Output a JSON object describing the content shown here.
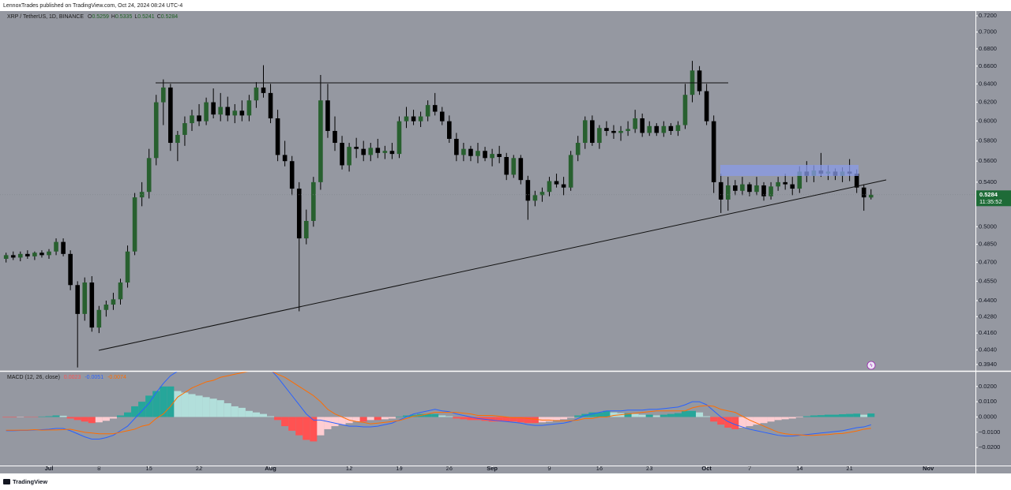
{
  "header": {
    "publisher": "LennoxTrades published on TradingView.com, Oct 24, 2024 08:24 UTC-4"
  },
  "footer": {
    "brand": "TradingView"
  },
  "chart_data": [
    {
      "type": "candlestick",
      "title": "XRP / TetherUS, 1D, BINANCE",
      "ohlc_labels": [
        "O",
        "H",
        "L",
        "C"
      ],
      "countdown": "11:35:52",
      "log_scale": true,
      "grid": false,
      "colors": {
        "up": "#28602f",
        "down": "#000000",
        "wick": "#000000",
        "price_tag": "#1e6b37"
      },
      "xlim": [
        -6.85,
        129.61
      ],
      "xticks": [
        {
          "value": 0,
          "label": "Jul"
        },
        {
          "value": 7,
          "label": "8"
        },
        {
          "value": 14,
          "label": "15"
        },
        {
          "value": 21,
          "label": "22"
        },
        {
          "value": 31,
          "label": "Aug"
        },
        {
          "value": 42,
          "label": "12"
        },
        {
          "value": 49,
          "label": "19"
        },
        {
          "value": 56,
          "label": "26"
        },
        {
          "value": 62,
          "label": "Sep"
        },
        {
          "value": 70,
          "label": "9"
        },
        {
          "value": 77,
          "label": "16"
        },
        {
          "value": 84,
          "label": "23"
        },
        {
          "value": 92,
          "label": "Oct"
        },
        {
          "value": 98,
          "label": "7"
        },
        {
          "value": 105,
          "label": "14"
        },
        {
          "value": 112,
          "label": "21"
        },
        {
          "value": 123,
          "label": "Nov"
        }
      ],
      "ylim": [
        0.3897,
        0.7259
      ],
      "yticks": [
        {
          "value": 0.72,
          "label": "0.7200"
        },
        {
          "value": 0.7,
          "label": "0.7000"
        },
        {
          "value": 0.68,
          "label": "0.6800"
        },
        {
          "value": 0.66,
          "label": "0.6600"
        },
        {
          "value": 0.64,
          "label": "0.6400"
        },
        {
          "value": 0.62,
          "label": "0.6200"
        },
        {
          "value": 0.6,
          "label": "0.6000"
        },
        {
          "value": 0.58,
          "label": "0.5800"
        },
        {
          "value": 0.56,
          "label": "0.5600"
        },
        {
          "value": 0.54,
          "label": "0.5400"
        },
        {
          "value": 0.5,
          "label": "0.5000"
        },
        {
          "value": 0.485,
          "label": "0.4850"
        },
        {
          "value": 0.47,
          "label": "0.4700"
        },
        {
          "value": 0.455,
          "label": "0.4550"
        },
        {
          "value": 0.44,
          "label": "0.4400"
        },
        {
          "value": 0.428,
          "label": "0.4280"
        },
        {
          "value": 0.416,
          "label": "0.4160"
        },
        {
          "value": 0.404,
          "label": "0.4040"
        },
        {
          "value": 0.394,
          "label": "0.3940"
        }
      ],
      "x": [
        -6,
        -5,
        -4,
        -3,
        -2,
        -1,
        0,
        1,
        2,
        3,
        4,
        5,
        6,
        7,
        8,
        9,
        10,
        11,
        12,
        13,
        14,
        15,
        16,
        17,
        18,
        19,
        20,
        21,
        22,
        23,
        24,
        25,
        26,
        27,
        28,
        29,
        30,
        31,
        32,
        33,
        34,
        35,
        36,
        37,
        38,
        39,
        40,
        41,
        42,
        43,
        44,
        45,
        46,
        47,
        48,
        49,
        50,
        51,
        52,
        53,
        54,
        55,
        56,
        57,
        58,
        59,
        60,
        61,
        62,
        63,
        64,
        65,
        66,
        67,
        68,
        69,
        70,
        71,
        72,
        73,
        74,
        75,
        76,
        77,
        78,
        79,
        80,
        81,
        82,
        83,
        84,
        85,
        86,
        87,
        88,
        89,
        90,
        91,
        92,
        93,
        94,
        95,
        96,
        97,
        98,
        99,
        100,
        101,
        102,
        103,
        104,
        105,
        106,
        107,
        108,
        109,
        110,
        111,
        112,
        113,
        114,
        115
      ],
      "open": [
        0.473,
        0.476,
        0.474,
        0.477,
        0.475,
        0.478,
        0.476,
        0.479,
        0.487,
        0.477,
        0.452,
        0.43,
        0.454,
        0.42,
        0.433,
        0.437,
        0.441,
        0.454,
        0.479,
        0.526,
        0.531,
        0.563,
        0.62,
        0.636,
        0.578,
        0.586,
        0.598,
        0.606,
        0.6,
        0.62,
        0.607,
        0.615,
        0.606,
        0.611,
        0.606,
        0.622,
        0.636,
        0.63,
        0.603,
        0.566,
        0.56,
        0.534,
        0.49,
        0.505,
        0.54,
        0.622,
        0.59,
        0.578,
        0.556,
        0.574,
        0.572,
        0.566,
        0.573,
        0.568,
        0.57,
        0.567,
        0.6,
        0.605,
        0.6,
        0.605,
        0.617,
        0.61,
        0.6,
        0.582,
        0.566,
        0.572,
        0.565,
        0.57,
        0.563,
        0.567,
        0.564,
        0.547,
        0.563,
        0.542,
        0.523,
        0.528,
        0.531,
        0.541,
        0.538,
        0.535,
        0.566,
        0.578,
        0.601,
        0.578,
        0.593,
        0.59,
        0.588,
        0.59,
        0.592,
        0.603,
        0.588,
        0.595,
        0.588,
        0.595,
        0.59,
        0.596,
        0.628,
        0.655,
        0.632,
        0.6,
        0.54,
        0.524,
        0.537,
        0.532,
        0.538,
        0.531,
        0.537,
        0.527,
        0.536,
        0.54,
        0.538,
        0.534,
        0.55,
        0.546,
        0.551,
        0.548,
        0.55,
        0.546,
        0.55,
        0.548,
        0.535,
        0.5259
      ],
      "high": [
        0.478,
        0.479,
        0.479,
        0.48,
        0.479,
        0.48,
        0.481,
        0.49,
        0.49,
        0.48,
        0.455,
        0.458,
        0.459,
        0.436,
        0.44,
        0.446,
        0.457,
        0.484,
        0.53,
        0.54,
        0.572,
        0.628,
        0.645,
        0.64,
        0.59,
        0.605,
        0.612,
        0.618,
        0.625,
        0.635,
        0.63,
        0.626,
        0.618,
        0.622,
        0.628,
        0.642,
        0.661,
        0.64,
        0.612,
        0.58,
        0.565,
        0.54,
        0.515,
        0.545,
        0.65,
        0.64,
        0.605,
        0.585,
        0.578,
        0.583,
        0.58,
        0.578,
        0.582,
        0.575,
        0.578,
        0.605,
        0.615,
        0.612,
        0.61,
        0.622,
        0.63,
        0.615,
        0.606,
        0.588,
        0.578,
        0.575,
        0.578,
        0.574,
        0.572,
        0.575,
        0.568,
        0.566,
        0.566,
        0.546,
        0.532,
        0.535,
        0.545,
        0.548,
        0.545,
        0.57,
        0.585,
        0.605,
        0.606,
        0.596,
        0.6,
        0.596,
        0.595,
        0.6,
        0.612,
        0.608,
        0.6,
        0.598,
        0.6,
        0.598,
        0.6,
        0.64,
        0.666,
        0.66,
        0.64,
        0.606,
        0.548,
        0.545,
        0.542,
        0.545,
        0.54,
        0.545,
        0.54,
        0.54,
        0.545,
        0.548,
        0.545,
        0.555,
        0.56,
        0.556,
        0.568,
        0.556,
        0.553,
        0.554,
        0.562,
        0.552,
        0.538,
        0.5335
      ],
      "low": [
        0.47,
        0.472,
        0.471,
        0.473,
        0.472,
        0.474,
        0.473,
        0.476,
        0.475,
        0.448,
        0.392,
        0.425,
        0.417,
        0.416,
        0.428,
        0.433,
        0.437,
        0.45,
        0.476,
        0.518,
        0.525,
        0.556,
        0.596,
        0.57,
        0.56,
        0.575,
        0.59,
        0.595,
        0.596,
        0.603,
        0.6,
        0.6,
        0.598,
        0.6,
        0.6,
        0.614,
        0.625,
        0.598,
        0.56,
        0.555,
        0.528,
        0.432,
        0.485,
        0.5,
        0.533,
        0.583,
        0.57,
        0.552,
        0.55,
        0.563,
        0.56,
        0.56,
        0.563,
        0.562,
        0.562,
        0.563,
        0.593,
        0.596,
        0.594,
        0.6,
        0.606,
        0.596,
        0.578,
        0.56,
        0.56,
        0.56,
        0.558,
        0.56,
        0.555,
        0.558,
        0.542,
        0.544,
        0.538,
        0.506,
        0.518,
        0.522,
        0.527,
        0.535,
        0.528,
        0.532,
        0.56,
        0.572,
        0.575,
        0.572,
        0.585,
        0.582,
        0.58,
        0.585,
        0.588,
        0.584,
        0.585,
        0.585,
        0.584,
        0.586,
        0.585,
        0.592,
        0.62,
        0.628,
        0.596,
        0.53,
        0.512,
        0.514,
        0.528,
        0.528,
        0.527,
        0.528,
        0.523,
        0.524,
        0.532,
        0.533,
        0.528,
        0.53,
        0.54,
        0.54,
        0.545,
        0.542,
        0.542,
        0.54,
        0.541,
        0.53,
        0.514,
        0.5241
      ],
      "close": [
        0.476,
        0.474,
        0.477,
        0.475,
        0.478,
        0.476,
        0.479,
        0.487,
        0.477,
        0.452,
        0.43,
        0.454,
        0.42,
        0.433,
        0.437,
        0.441,
        0.454,
        0.479,
        0.526,
        0.531,
        0.563,
        0.62,
        0.636,
        0.578,
        0.586,
        0.598,
        0.606,
        0.6,
        0.62,
        0.607,
        0.615,
        0.606,
        0.611,
        0.606,
        0.622,
        0.636,
        0.63,
        0.603,
        0.566,
        0.56,
        0.534,
        0.49,
        0.505,
        0.54,
        0.622,
        0.59,
        0.578,
        0.556,
        0.574,
        0.572,
        0.566,
        0.573,
        0.568,
        0.57,
        0.567,
        0.6,
        0.605,
        0.6,
        0.605,
        0.617,
        0.61,
        0.6,
        0.582,
        0.566,
        0.572,
        0.565,
        0.57,
        0.563,
        0.567,
        0.564,
        0.547,
        0.563,
        0.542,
        0.523,
        0.528,
        0.531,
        0.541,
        0.538,
        0.535,
        0.566,
        0.578,
        0.601,
        0.578,
        0.593,
        0.59,
        0.588,
        0.59,
        0.592,
        0.603,
        0.588,
        0.595,
        0.588,
        0.595,
        0.59,
        0.596,
        0.628,
        0.655,
        0.632,
        0.6,
        0.54,
        0.524,
        0.537,
        0.532,
        0.538,
        0.531,
        0.537,
        0.527,
        0.536,
        0.54,
        0.538,
        0.534,
        0.55,
        0.546,
        0.551,
        0.548,
        0.55,
        0.546,
        0.55,
        0.548,
        0.535,
        0.526,
        0.5284
      ]
    },
    {
      "type": "macd",
      "title": "MACD (12, 26, close)",
      "ylim": [
        -0.0318,
        0.0297
      ],
      "yticks": [
        {
          "value": 0.02,
          "label": "0.0200"
        },
        {
          "value": 0.01,
          "label": "0.0100"
        },
        {
          "value": 0,
          "label": "0.0000"
        },
        {
          "value": -0.01,
          "label": "−0.0100"
        },
        {
          "value": -0.02,
          "label": "−0.0200"
        }
      ],
      "colors": {
        "macd": "#2962ff",
        "signal": "#ff6d00",
        "hist_up_rising": "#26a69a",
        "hist_up_falling": "#b2dfdb",
        "hist_down_falling": "#ff5252",
        "hist_down_rising": "#ffcdd2"
      },
      "histogram": [
        -0.0003,
        -0.0003,
        -0.0002,
        -0.0002,
        -0.0002,
        0.0003,
        0.0005,
        0.001,
        0.0008,
        -0.001,
        -0.002,
        -0.003,
        -0.004,
        -0.0035,
        -0.0025,
        -0.001,
        0.001,
        0.003,
        0.007,
        0.01,
        0.014,
        0.017,
        0.02,
        0.02,
        0.017,
        0.016,
        0.015,
        0.014,
        0.013,
        0.012,
        0.011,
        0.009,
        0.007,
        0.006,
        0.004,
        0.003,
        0.002,
        0.0005,
        -0.002,
        -0.006,
        -0.009,
        -0.012,
        -0.015,
        -0.016,
        -0.012,
        -0.008,
        -0.006,
        -0.005,
        -0.004,
        -0.003,
        -0.003,
        -0.002,
        -0.002,
        -0.0015,
        -0.001,
        0.0003,
        0.001,
        0.0015,
        0.002,
        0.002,
        0.002,
        0.001,
        0.0005,
        -0.001,
        -0.0015,
        -0.002,
        -0.002,
        -0.0025,
        -0.003,
        -0.003,
        -0.003,
        -0.003,
        -0.0035,
        -0.004,
        -0.004,
        -0.0035,
        -0.003,
        -0.002,
        -0.0015,
        -0.0005,
        0.001,
        0.002,
        0.003,
        0.003,
        0.004,
        0.003,
        0.0025,
        0.0025,
        0.002,
        0.0015,
        0.0015,
        0.001,
        0.0015,
        0.002,
        0.0025,
        0.004,
        0.004,
        0.003,
        0.0005,
        -0.003,
        -0.005,
        -0.007,
        -0.008,
        -0.007,
        -0.006,
        -0.005,
        -0.004,
        -0.003,
        -0.002,
        -0.0015,
        -0.001,
        -0.0003,
        0.0005,
        0.001,
        0.0012,
        0.0015,
        0.0015,
        0.0018,
        0.002,
        0.0022,
        0.0015,
        0.0023
      ],
      "macd": [
        -0.009,
        -0.009,
        -0.0088,
        -0.0088,
        -0.0085,
        -0.0083,
        -0.008,
        -0.0075,
        -0.0075,
        -0.009,
        -0.011,
        -0.013,
        -0.0145,
        -0.0145,
        -0.0135,
        -0.012,
        -0.009,
        -0.006,
        -0.001,
        0.004,
        0.009,
        0.016,
        0.022,
        0.027,
        0.03,
        0.032,
        0.034,
        0.035,
        0.036,
        0.036,
        0.037,
        0.036,
        0.035,
        0.035,
        0.034,
        0.034,
        0.033,
        0.031,
        0.026,
        0.02,
        0.014,
        0.008,
        0.002,
        -0.002,
        -0.002,
        -0.003,
        -0.004,
        -0.005,
        -0.006,
        -0.006,
        -0.0065,
        -0.0065,
        -0.006,
        -0.005,
        -0.004,
        -0.002,
        0.0,
        0.002,
        0.003,
        0.004,
        0.005,
        0.004,
        0.0035,
        0.002,
        0.001,
        0.0,
        -0.001,
        -0.0015,
        -0.002,
        -0.0025,
        -0.003,
        -0.0035,
        -0.004,
        -0.005,
        -0.0055,
        -0.0055,
        -0.005,
        -0.0045,
        -0.004,
        -0.003,
        -0.001,
        0.001,
        0.002,
        0.003,
        0.004,
        0.004,
        0.004,
        0.0045,
        0.0045,
        0.0045,
        0.005,
        0.005,
        0.0055,
        0.006,
        0.0065,
        0.008,
        0.01,
        0.01,
        0.008,
        0.004,
        0.0,
        -0.003,
        -0.005,
        -0.0065,
        -0.008,
        -0.009,
        -0.01,
        -0.011,
        -0.012,
        -0.0125,
        -0.0125,
        -0.012,
        -0.0115,
        -0.011,
        -0.0105,
        -0.01,
        -0.0095,
        -0.009,
        -0.008,
        -0.007,
        -0.0065,
        -0.0051
      ],
      "signal": [
        -0.0087,
        -0.0087,
        -0.0086,
        -0.0086,
        -0.0083,
        -0.0086,
        -0.0085,
        -0.0085,
        -0.0083,
        -0.008,
        -0.009,
        -0.01,
        -0.0105,
        -0.011,
        -0.011,
        -0.011,
        -0.01,
        -0.009,
        -0.008,
        -0.006,
        -0.005,
        -0.001,
        0.002,
        0.007,
        0.013,
        0.016,
        0.019,
        0.021,
        0.023,
        0.024,
        0.026,
        0.027,
        0.028,
        0.029,
        0.03,
        0.031,
        0.031,
        0.0305,
        0.028,
        0.026,
        0.023,
        0.02,
        0.017,
        0.014,
        0.01,
        0.005,
        0.002,
        0.0,
        -0.002,
        -0.003,
        -0.0035,
        -0.0045,
        -0.004,
        -0.0035,
        -0.003,
        -0.0023,
        -0.001,
        0.0005,
        0.001,
        0.002,
        0.003,
        0.003,
        0.003,
        0.003,
        0.0025,
        0.002,
        0.001,
        0.001,
        0.001,
        0.0005,
        0.0,
        -0.0005,
        -0.0005,
        -0.001,
        -0.0015,
        -0.002,
        -0.002,
        -0.0025,
        -0.0025,
        -0.0025,
        -0.002,
        -0.001,
        -0.001,
        0.0,
        0.0,
        0.001,
        0.0015,
        0.002,
        0.0025,
        0.003,
        0.0035,
        0.004,
        0.004,
        0.004,
        0.004,
        0.004,
        0.006,
        0.007,
        0.0075,
        0.007,
        0.005,
        0.004,
        0.003,
        0.0005,
        -0.002,
        -0.004,
        -0.006,
        -0.008,
        -0.01,
        -0.011,
        -0.0115,
        -0.0117,
        -0.012,
        -0.012,
        -0.0117,
        -0.0115,
        -0.011,
        -0.0108,
        -0.01,
        -0.0092,
        -0.008,
        -0.0074
      ]
    }
  ]
}
